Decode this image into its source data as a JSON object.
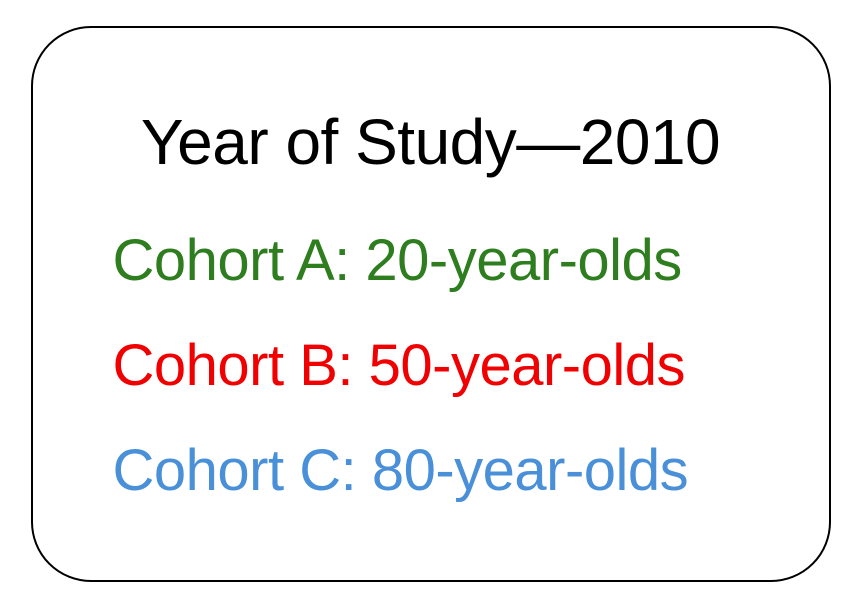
{
  "diagram": {
    "type": "infographic",
    "title": "Year of Study—2010",
    "title_color": "#000000",
    "title_fontsize": 64,
    "background_color": "#ffffff",
    "border_color": "#000000",
    "border_width": 2,
    "border_radius": 60,
    "cohorts": [
      {
        "label": "Cohort A: 20-year-olds",
        "color": "#2e7d1f",
        "fontsize": 58
      },
      {
        "label": "Cohort B: 50-year-olds",
        "color": "#f00000",
        "fontsize": 58
      },
      {
        "label": "Cohort C: 80-year-olds",
        "color": "#4a90d9",
        "fontsize": 58
      }
    ]
  }
}
